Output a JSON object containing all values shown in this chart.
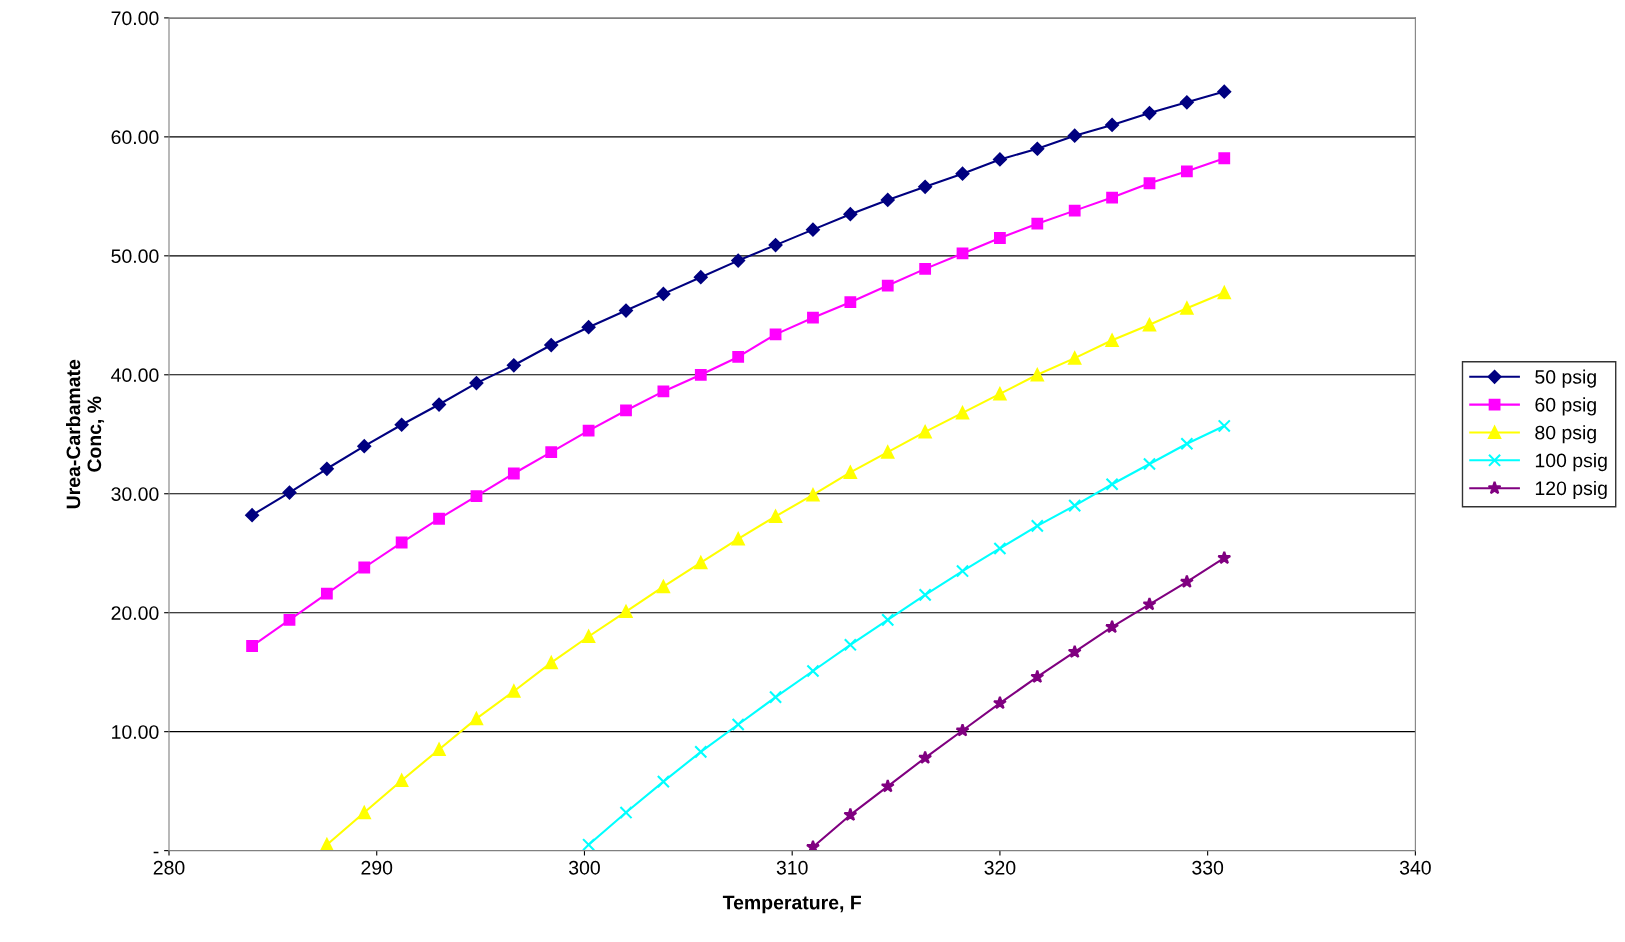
{
  "chart_data": {
    "type": "line",
    "xlabel": "Temperature, F",
    "ylabel": "Urea-Carbamate\nConc, %",
    "xlim": [
      280,
      340
    ],
    "xticks": [
      280,
      290,
      300,
      310,
      320,
      330,
      340
    ],
    "ylim": [
      0,
      70
    ],
    "yticks": [
      {
        "value": 0,
        "label": "-"
      },
      {
        "value": 10,
        "label": "10.00"
      },
      {
        "value": 20,
        "label": "20.00"
      },
      {
        "value": 30,
        "label": "30.00"
      },
      {
        "value": 40,
        "label": "40.00"
      },
      {
        "value": 50,
        "label": "50.00"
      },
      {
        "value": 60,
        "label": "60.00"
      },
      {
        "value": 70,
        "label": "70.00"
      }
    ],
    "grid": "y",
    "legend": "right",
    "line_style": "solid",
    "series": [
      {
        "name": "50 psig",
        "color": "#000080",
        "marker": "diamond",
        "x": [
          284,
          285.8,
          287.6,
          289.4,
          291.2,
          293,
          294.8,
          296.6,
          298.4,
          300.2,
          302,
          303.8,
          305.6,
          307.4,
          309.2,
          311,
          312.8,
          314.6,
          316.4,
          318.2,
          320,
          321.8,
          323.6,
          325.4,
          327.2,
          329,
          330.8
        ],
        "values": [
          28.2,
          30.1,
          32.1,
          34.0,
          35.8,
          37.5,
          39.3,
          40.8,
          42.5,
          44.0,
          45.4,
          46.8,
          48.2,
          49.6,
          50.9,
          52.2,
          53.5,
          54.7,
          55.8,
          56.9,
          58.1,
          59.0,
          60.1,
          61.0,
          62.0,
          62.9,
          63.8
        ]
      },
      {
        "name": "60 psig",
        "color": "#ff00ff",
        "marker": "square",
        "x": [
          284,
          285.8,
          287.6,
          289.4,
          291.2,
          293,
          294.8,
          296.6,
          298.4,
          300.2,
          302,
          303.8,
          305.6,
          307.4,
          309.2,
          311,
          312.8,
          314.6,
          316.4,
          318.2,
          320,
          321.8,
          323.6,
          325.4,
          327.2,
          329,
          330.8
        ],
        "values": [
          17.2,
          19.4,
          21.6,
          23.8,
          25.9,
          27.9,
          29.8,
          31.7,
          33.5,
          35.3,
          37.0,
          38.6,
          40.0,
          41.5,
          43.4,
          44.8,
          46.1,
          47.5,
          48.9,
          50.2,
          51.5,
          52.7,
          53.8,
          54.9,
          56.1,
          57.1,
          58.2
        ]
      },
      {
        "name": "80 psig",
        "color": "#ffff00",
        "marker": "triangle",
        "x": [
          287.6,
          289.4,
          291.2,
          293,
          294.8,
          296.6,
          298.4,
          300.2,
          302,
          303.8,
          305.6,
          307.4,
          309.2,
          311,
          312.8,
          314.6,
          316.4,
          318.2,
          320,
          321.8,
          323.6,
          325.4,
          327.2,
          329,
          330.8
        ],
        "values": [
          0.5,
          3.2,
          5.9,
          8.5,
          11.1,
          13.4,
          15.8,
          18.0,
          20.1,
          22.2,
          24.2,
          26.2,
          28.1,
          29.9,
          31.8,
          33.5,
          35.2,
          36.8,
          38.4,
          40.0,
          41.4,
          42.9,
          44.2,
          45.6,
          46.9
        ]
      },
      {
        "name": "100 psig",
        "color": "#00ffff",
        "marker": "cross",
        "x": [
          300.2,
          302,
          303.8,
          305.6,
          307.4,
          309.2,
          311,
          312.8,
          314.6,
          316.4,
          318.2,
          320,
          321.8,
          323.6,
          325.4,
          327.2,
          329,
          330.8
        ],
        "values": [
          0.5,
          3.2,
          5.8,
          8.3,
          10.6,
          12.9,
          15.1,
          17.3,
          19.4,
          21.5,
          23.5,
          25.4,
          27.3,
          29.0,
          30.8,
          32.5,
          34.2,
          35.7
        ]
      },
      {
        "name": "120 psig",
        "color": "#800080",
        "marker": "star",
        "x": [
          311,
          312.8,
          314.6,
          316.4,
          318.2,
          320,
          321.8,
          323.6,
          325.4,
          327.2,
          329,
          330.8
        ],
        "values": [
          0.3,
          3.0,
          5.4,
          7.8,
          10.1,
          12.4,
          14.6,
          16.7,
          18.8,
          20.7,
          22.6,
          24.6
        ]
      }
    ]
  }
}
